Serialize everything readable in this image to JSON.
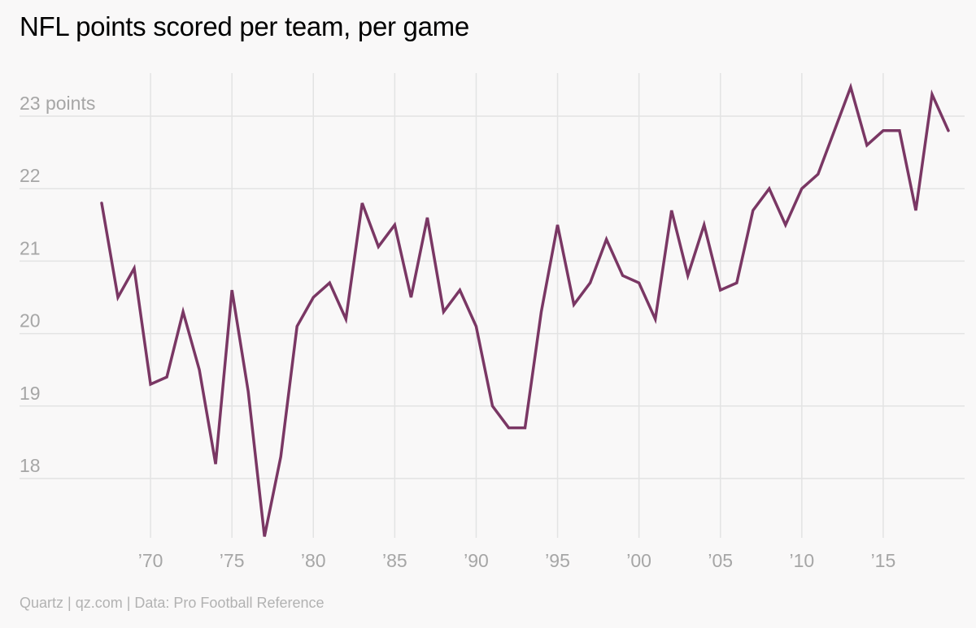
{
  "header": {
    "title": "NFL points scored per team, per game"
  },
  "footer": {
    "credit": "Quartz | qz.com | Data: Pro Football Reference"
  },
  "colors": {
    "series": "#7a3764",
    "grid": "#e3e3e3",
    "tick_text": "#a6a6a6",
    "background": "#f9f8f8"
  },
  "chart_data": {
    "type": "line",
    "title": "NFL points scored per team, per game",
    "xlabel": "",
    "ylabel": "",
    "xlim": [
      1965,
      2020
    ],
    "ylim": [
      17.2,
      23.6
    ],
    "grid": true,
    "legend": "none",
    "x_ticks": [
      {
        "value": 1970,
        "label": "’70"
      },
      {
        "value": 1975,
        "label": "’75"
      },
      {
        "value": 1980,
        "label": "’80"
      },
      {
        "value": 1985,
        "label": "’85"
      },
      {
        "value": 1990,
        "label": "’90"
      },
      {
        "value": 1995,
        "label": "’95"
      },
      {
        "value": 2000,
        "label": "’00"
      },
      {
        "value": 2005,
        "label": "’05"
      },
      {
        "value": 2010,
        "label": "’10"
      },
      {
        "value": 2015,
        "label": "’15"
      }
    ],
    "y_ticks": [
      {
        "value": 23,
        "label": "23 points"
      },
      {
        "value": 22,
        "label": "22"
      },
      {
        "value": 21,
        "label": "21"
      },
      {
        "value": 20,
        "label": "20"
      },
      {
        "value": 19,
        "label": "19"
      },
      {
        "value": 18,
        "label": "18"
      }
    ],
    "series": [
      {
        "name": "Points per team, per game",
        "x": [
          1967,
          1968,
          1969,
          1970,
          1971,
          1972,
          1973,
          1974,
          1975,
          1976,
          1977,
          1978,
          1979,
          1980,
          1981,
          1982,
          1983,
          1984,
          1985,
          1986,
          1987,
          1988,
          1989,
          1990,
          1991,
          1992,
          1993,
          1994,
          1995,
          1996,
          1997,
          1998,
          1999,
          2000,
          2001,
          2002,
          2003,
          2004,
          2005,
          2006,
          2007,
          2008,
          2009,
          2010,
          2011,
          2012,
          2013,
          2014,
          2015,
          2016,
          2017,
          2018,
          2019
        ],
        "values": [
          21.8,
          20.5,
          20.9,
          19.3,
          19.4,
          20.3,
          19.5,
          18.2,
          20.6,
          19.2,
          17.2,
          18.3,
          20.1,
          20.5,
          20.7,
          20.2,
          21.8,
          21.2,
          21.5,
          20.5,
          21.6,
          20.3,
          20.6,
          20.1,
          19.0,
          18.7,
          18.7,
          20.3,
          21.5,
          20.4,
          20.7,
          21.3,
          20.8,
          20.7,
          20.2,
          21.7,
          20.8,
          21.5,
          20.6,
          20.7,
          21.7,
          22.0,
          21.5,
          22.0,
          22.2,
          22.8,
          23.4,
          22.6,
          22.8,
          22.8,
          21.7,
          23.3,
          22.8
        ]
      }
    ]
  }
}
